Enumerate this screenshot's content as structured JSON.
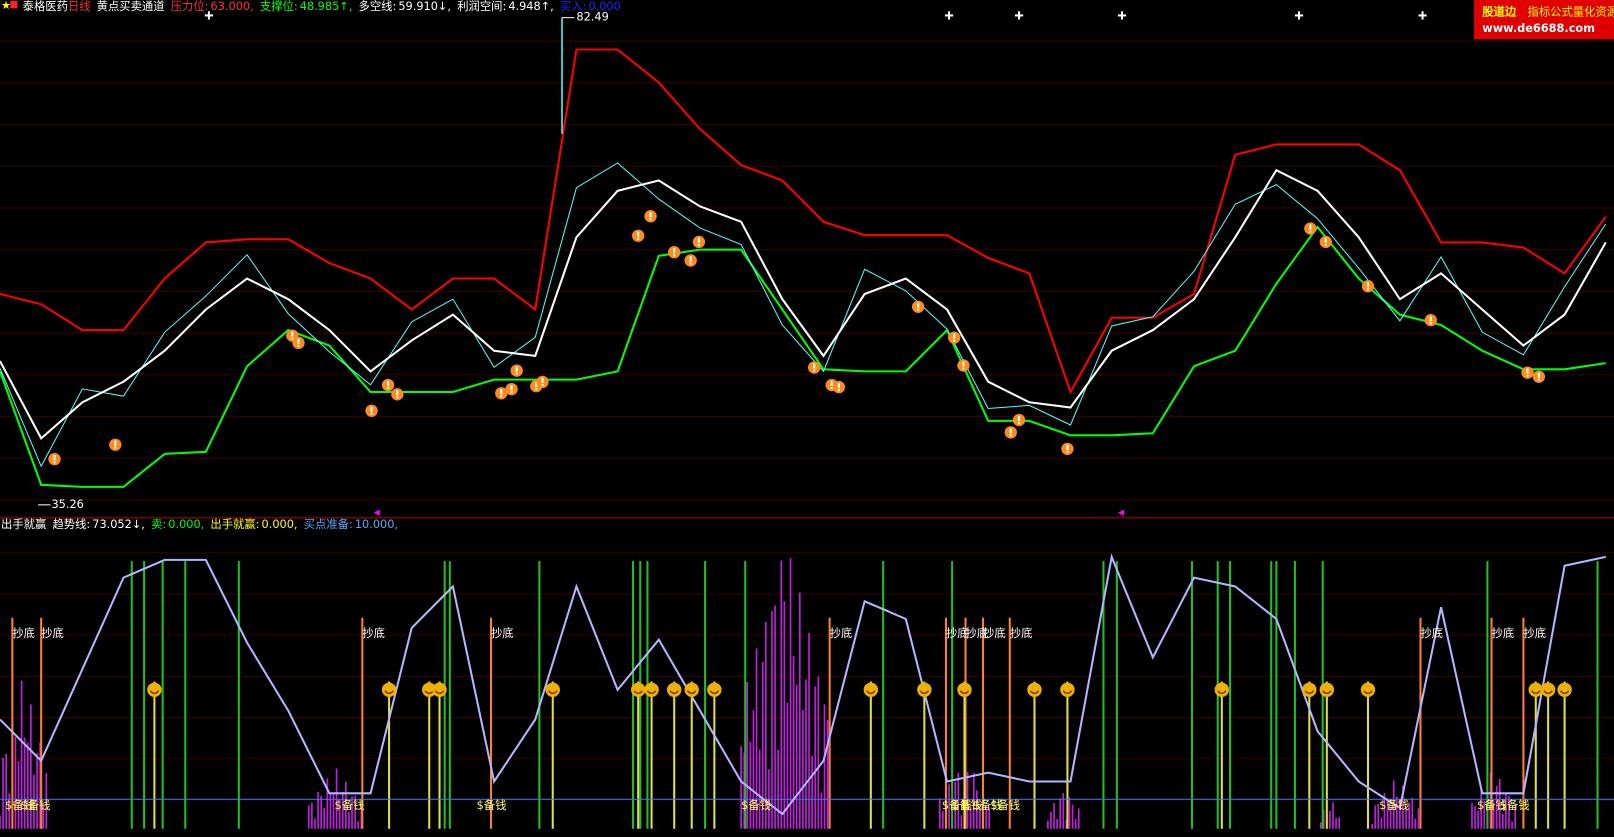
{
  "watermark": {
    "brand": "股道边",
    "slogan": "指标公式量化资源",
    "url": "www.de6688.com"
  },
  "chart_data": [
    {
      "type": "line",
      "title": "泰格医药",
      "period": "日线",
      "indicator": "黄点买卖通道",
      "readouts": [
        {
          "name": "压力位:",
          "text": "63.000,",
          "color": "#ff3232"
        },
        {
          "name": "支撑位:",
          "text": "48.985↑,",
          "color": "#00ff00"
        },
        {
          "name": "多空线:",
          "text": "59.910↓,",
          "color": "#ffffff"
        },
        {
          "name": "利润空间:",
          "text": "4.948↑,",
          "color": "#ffffff"
        },
        {
          "name": "买入:",
          "text": "0.000",
          "color": "#2020ff"
        }
      ],
      "annotations": [
        82.49,
        35.26
      ],
      "ylim": [
        34,
        84.2
      ],
      "series": [
        {
          "color": "#ff0000",
          "values": [
            55.7,
            54.7,
            52.2,
            52.2,
            57.2,
            60.7,
            61.0,
            61.0,
            58.7,
            57.2,
            54.2,
            57.2,
            57.2,
            54.2,
            79.4,
            79.4,
            76.2,
            71.7,
            68.2,
            66.7,
            62.7,
            61.4,
            61.4,
            61.4,
            59.2,
            57.7,
            46.2,
            53.4,
            53.4,
            55.7,
            69.2,
            70.2,
            70.2,
            70.2,
            67.7,
            60.7,
            60.7,
            60.2,
            57.7,
            63.2
          ]
        },
        {
          "color": "#00ff00",
          "values": [
            48.2,
            37.2,
            37.0,
            37.0,
            40.2,
            40.4,
            48.7,
            52.2,
            50.7,
            46.2,
            46.2,
            46.2,
            47.4,
            47.4,
            47.4,
            48.2,
            59.4,
            60.0,
            60.0,
            54.2,
            48.4,
            48.2,
            48.2,
            52.2,
            43.4,
            43.4,
            42.0,
            42.0,
            42.2,
            48.7,
            50.2,
            56.7,
            62.2,
            57.2,
            53.7,
            52.7,
            50.2,
            48.4,
            48.4,
            49.0
          ]
        },
        {
          "color": "#54fcfc",
          "values": [
            48.5,
            39.0,
            46.5,
            45.8,
            52.0,
            55.5,
            59.5,
            53.8,
            50.1,
            46.9,
            53.0,
            55.2,
            48.6,
            51.5,
            66.0,
            68.4,
            64.9,
            62.1,
            60.5,
            52.7,
            48.2,
            58.1,
            56.0,
            52.3,
            44.6,
            44.9,
            43.0,
            52.6,
            53.5,
            57.9,
            64.4,
            66.3,
            63.0,
            58.2,
            53.1,
            59.3,
            52.0,
            49.8,
            56.4,
            62.5
          ]
        },
        {
          "color": "#ffffff",
          "values": [
            49.2,
            41.7,
            45.2,
            47.2,
            50.2,
            54.2,
            57.2,
            55.2,
            52.2,
            48.2,
            51.2,
            53.7,
            50.2,
            49.7,
            61.2,
            65.7,
            66.7,
            64.2,
            62.7,
            55.2,
            49.7,
            55.7,
            57.2,
            54.2,
            47.2,
            45.2,
            44.7,
            50.2,
            52.2,
            55.2,
            61.2,
            67.7,
            65.7,
            61.2,
            55.2,
            57.7,
            54.2,
            50.7,
            53.7,
            60.7
          ]
        }
      ]
    },
    {
      "type": "line",
      "title": "出手就赢",
      "readouts": [
        {
          "name": "趋势线:",
          "text": "73.052↓,",
          "color": "#ffffff"
        },
        {
          "name": "卖:",
          "text": "0.000,",
          "color": "#00ff00"
        },
        {
          "name": "出手就赢:",
          "text": "0.000,",
          "color": "#ffff00"
        },
        {
          "name": "买点准备:",
          "text": "10.000,",
          "color": "#54a8ff"
        }
      ],
      "ylim": [
        0,
        100
      ],
      "reference": 10,
      "reference_color": "#3c78ff",
      "series": [
        {
          "color": "#b4b4ff",
          "values": [
            37,
            23,
            54,
            85,
            91,
            91,
            63,
            40,
            12,
            12,
            68,
            82,
            16,
            37,
            82,
            47,
            64,
            40,
            16,
            5,
            23,
            77,
            71,
            16,
            19,
            16,
            16,
            92,
            58,
            85,
            82,
            71,
            33,
            16,
            7,
            75,
            12,
            12,
            89,
            92
          ]
        }
      ],
      "upper_labels": [
        "抄底",
        "抄底",
        "抄底",
        "抄底",
        "抄底",
        "抄底",
        "抄底",
        "抄底",
        "抄底",
        "抄底",
        "抄底",
        "抄底"
      ],
      "lower_labels": [
        "$备钱",
        "$备钱",
        "$备钱",
        "$备钱",
        "$备钱",
        "$备钱",
        "$备钱",
        "$备钱",
        "$备钱",
        "$备钱",
        "$备钱",
        "$备钱"
      ]
    }
  ]
}
